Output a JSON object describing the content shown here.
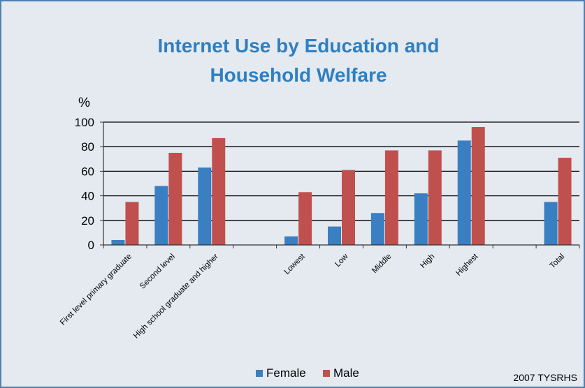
{
  "chart_data": {
    "type": "bar",
    "title": "Internet Use by Education and Household Welfare",
    "title_lines": [
      "Internet Use by Education and",
      "Household Welfare"
    ],
    "ylabel": "%",
    "ylim": [
      0,
      100
    ],
    "yticks": [
      0,
      20,
      40,
      60,
      80,
      100
    ],
    "grid": true,
    "legend_position": "bottom",
    "categories": [
      "First level primary graduate",
      "Second level",
      "High school graduate and higher",
      "",
      "Lowest",
      "Low",
      "Middle",
      "High",
      "Highest",
      "",
      "Total"
    ],
    "series": [
      {
        "name": "Female",
        "color": "#3a7fc1",
        "values": [
          4,
          48,
          63,
          null,
          7,
          15,
          26,
          42,
          85,
          null,
          35
        ]
      },
      {
        "name": "Male",
        "color": "#c0504d",
        "values": [
          35,
          75,
          87,
          null,
          43,
          61,
          77,
          77,
          96,
          null,
          71
        ]
      }
    ],
    "source_note": "2007 TYSRHS"
  },
  "colors": {
    "background": "#e4eaf0",
    "border": "#4d7fb1",
    "title": "#2f7fc1",
    "axis": "#333333",
    "text": "#000000"
  }
}
